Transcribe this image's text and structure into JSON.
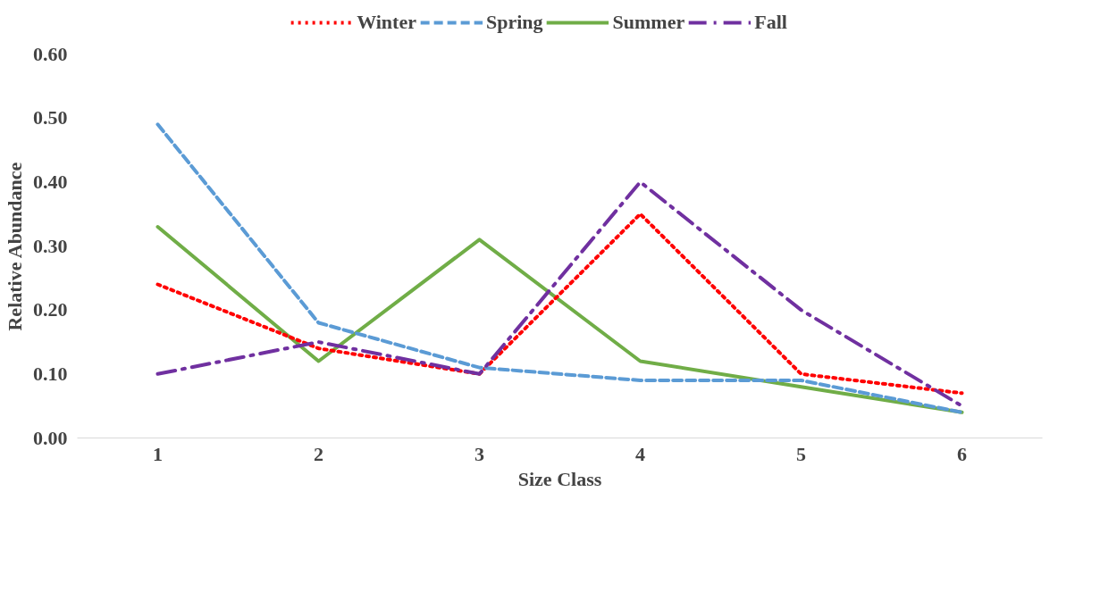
{
  "chart_data": {
    "type": "line",
    "xlabel": "Size Class",
    "ylabel": "Relative Abundance",
    "categories": [
      "1",
      "2",
      "3",
      "4",
      "5",
      "6"
    ],
    "series": [
      {
        "name": "Winter",
        "color": "#ff0000",
        "line_style": "dotted",
        "values": [
          0.24,
          0.14,
          0.1,
          0.35,
          0.1,
          0.07
        ]
      },
      {
        "name": "Spring",
        "color": "#5b9bd5",
        "line_style": "dashed",
        "values": [
          0.49,
          0.18,
          0.11,
          0.09,
          0.09,
          0.04
        ]
      },
      {
        "name": "Summer",
        "color": "#70ad47",
        "line_style": "solid",
        "values": [
          0.33,
          0.12,
          0.31,
          0.12,
          0.08,
          0.04
        ]
      },
      {
        "name": "Fall",
        "color": "#7030a0",
        "line_style": "dashdot",
        "values": [
          0.1,
          0.15,
          0.1,
          0.4,
          0.2,
          0.05
        ]
      }
    ],
    "ylim": [
      0,
      0.6
    ],
    "yticks": [
      {
        "value": 0,
        "label": "0.00"
      },
      {
        "value": 0.1,
        "label": "0.10"
      },
      {
        "value": 0.2,
        "label": "0.20"
      },
      {
        "value": 0.3,
        "label": "0.30"
      },
      {
        "value": 0.4,
        "label": "0.40"
      },
      {
        "value": 0.5,
        "label": "0.50"
      },
      {
        "value": 0.6,
        "label": "0.60"
      }
    ],
    "grid": false,
    "legend": "top",
    "marker": "none"
  }
}
